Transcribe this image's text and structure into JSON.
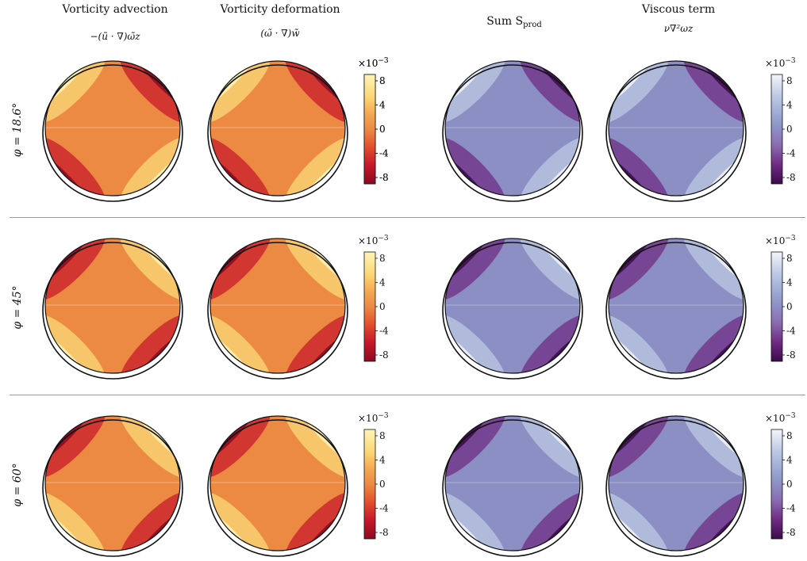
{
  "columns": [
    {
      "title": "Vorticity advection",
      "formula": "−(ũ · ∇)ω̃z"
    },
    {
      "title": "Vorticity deformation",
      "formula": "(ω̃ · ∇)w̃"
    },
    {
      "title": "Sum S",
      "formula": "",
      "title_sub": "prod"
    },
    {
      "title": "Viscous term",
      "formula": "ν∇²ωz"
    }
  ],
  "rows": [
    {
      "label": "φ = 18.6°"
    },
    {
      "label": "φ = 45°"
    },
    {
      "label": "φ = 60°"
    }
  ],
  "colorbars": {
    "multiplier": "×10",
    "exponent": "−3",
    "ticks": [
      "8",
      "4",
      "0",
      "-4",
      "-8"
    ]
  },
  "colors": {
    "warm_background": "#ec8a44",
    "warm_high": "#fff4b8",
    "warm_low": "#8a0a22",
    "cool_background": "#8c8fc4",
    "cool_high": "#f3f5fb",
    "cool_low": "#3b0a4a",
    "separator": "#9a9a9a"
  },
  "chart_data": {
    "type": "heatmap",
    "description_fields": [
      "columns",
      "rows"
    ],
    "scale_multiplier": 0.001,
    "color_range": [
      -8,
      8
    ],
    "panels": [
      {
        "row": "φ = 18.6°",
        "column": "Vorticity advection",
        "colormap": "warm",
        "colorbar": true
      },
      {
        "row": "φ = 18.6°",
        "column": "Vorticity deformation",
        "colormap": "warm",
        "colorbar": true
      },
      {
        "row": "φ = 18.6°",
        "column": "Sum S prod",
        "colormap": "cool",
        "colorbar": false
      },
      {
        "row": "φ = 18.6°",
        "column": "Viscous term",
        "colormap": "cool",
        "colorbar": true
      },
      {
        "row": "φ = 45°",
        "column": "Vorticity advection",
        "colormap": "warm",
        "colorbar": false
      },
      {
        "row": "φ = 45°",
        "column": "Vorticity deformation",
        "colormap": "warm",
        "colorbar": true
      },
      {
        "row": "φ = 45°",
        "column": "Sum S prod",
        "colormap": "cool",
        "colorbar": false
      },
      {
        "row": "φ = 45°",
        "column": "Viscous term",
        "colormap": "cool",
        "colorbar": true
      },
      {
        "row": "φ = 60°",
        "column": "Vorticity advection",
        "colormap": "warm",
        "colorbar": false
      },
      {
        "row": "φ = 60°",
        "column": "Vorticity deformation",
        "colormap": "warm",
        "colorbar": true
      },
      {
        "row": "φ = 60°",
        "column": "Sum S prod",
        "colormap": "cool",
        "colorbar": false
      },
      {
        "row": "φ = 60°",
        "column": "Viscous term",
        "colormap": "cool",
        "colorbar": true
      }
    ]
  }
}
